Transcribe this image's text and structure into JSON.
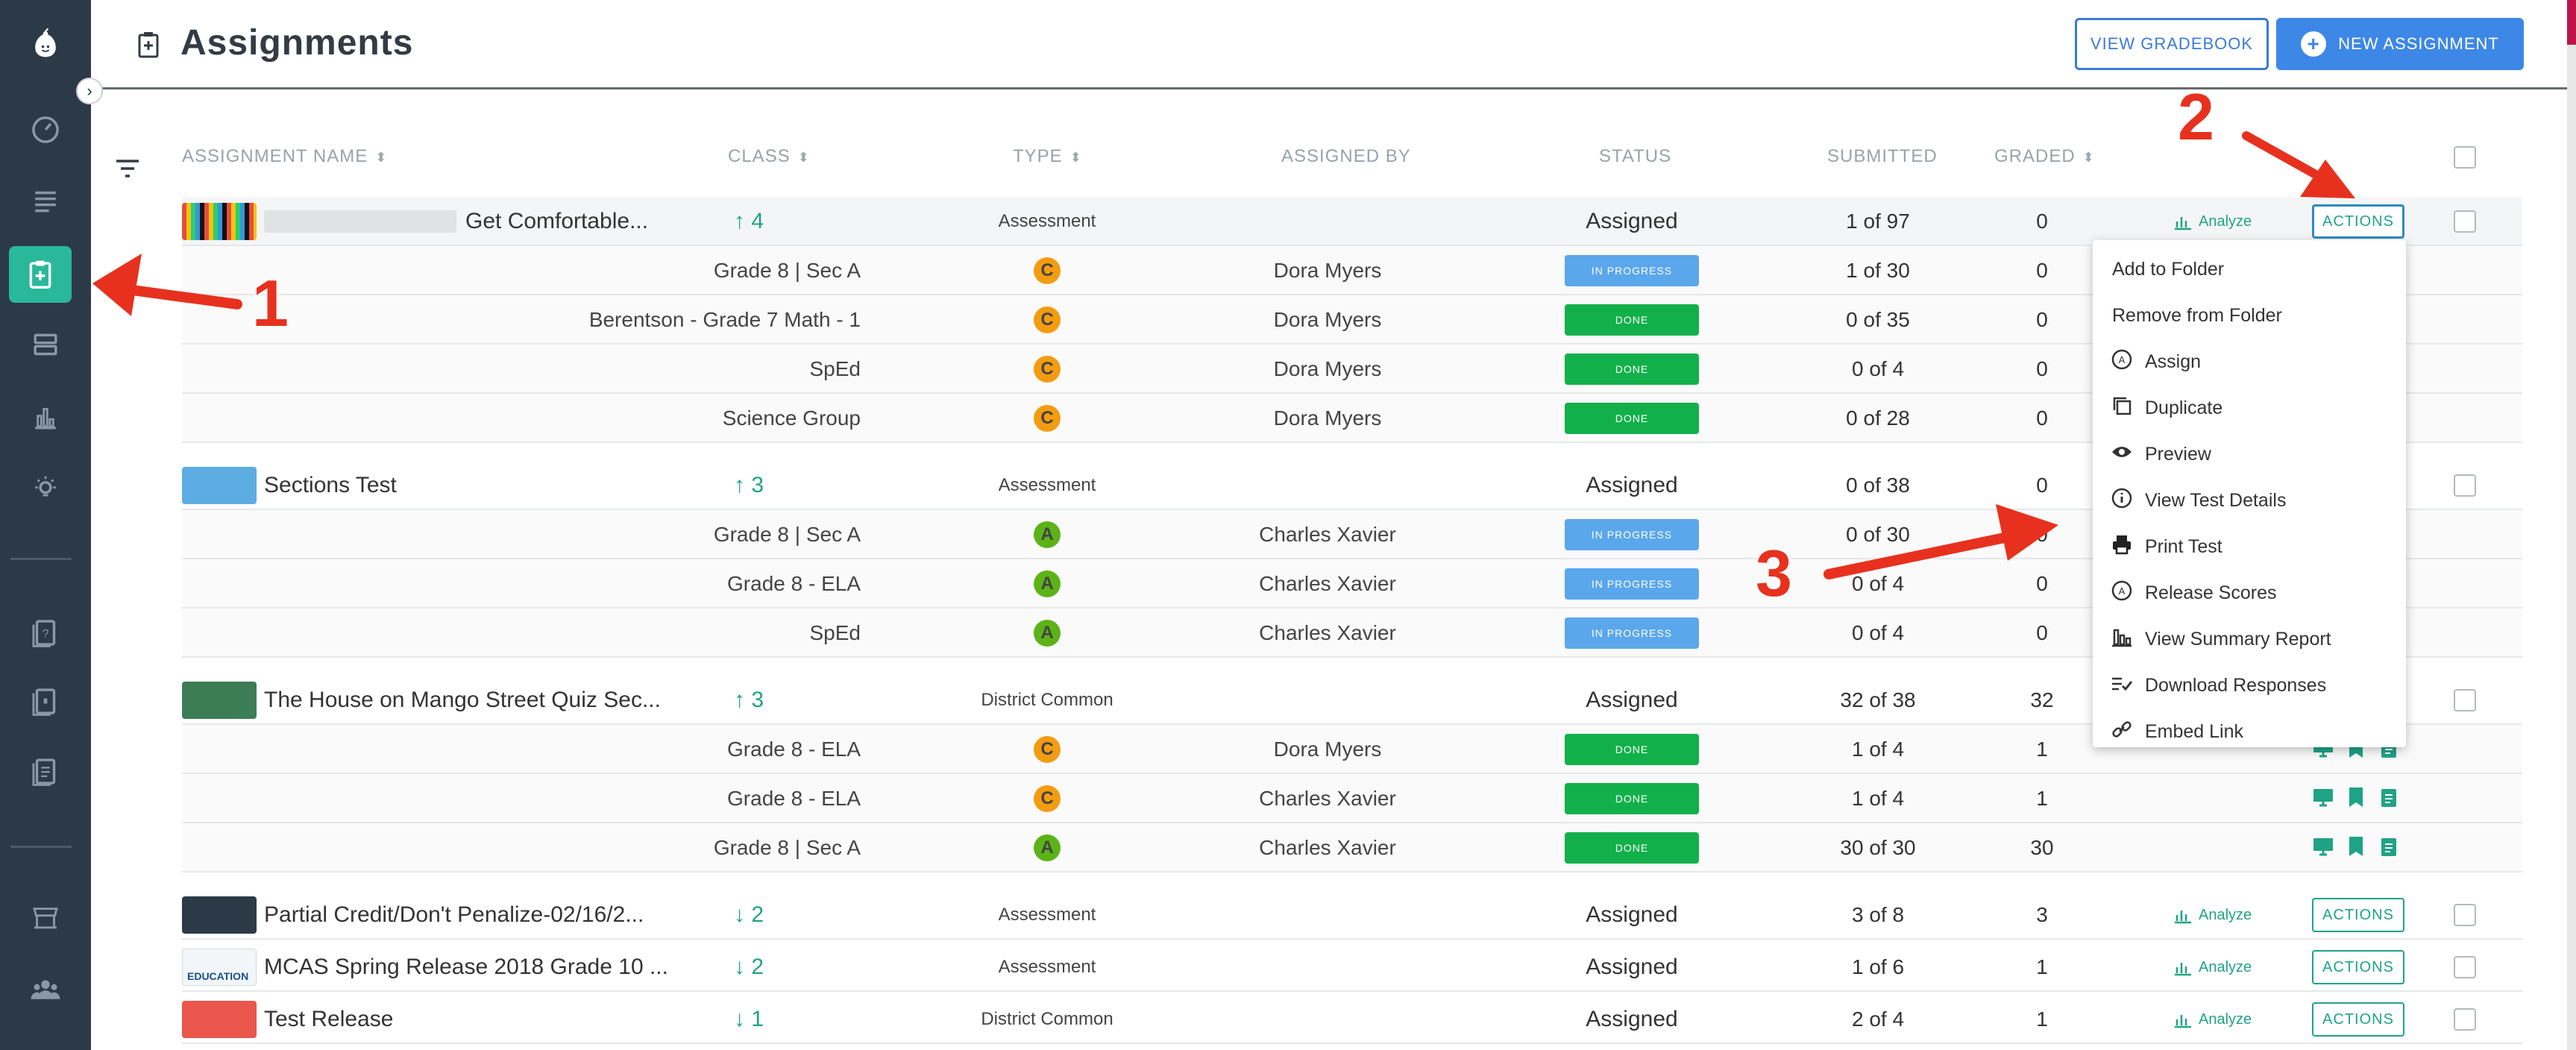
{
  "header": {
    "title": "Assignments",
    "view_gradebook": "VIEW GRADEBOOK",
    "new_assignment": "NEW ASSIGNMENT"
  },
  "columns": {
    "name": "ASSIGNMENT NAME",
    "class": "CLASS",
    "type": "TYPE",
    "assigned_by": "ASSIGNED BY",
    "status": "STATUS",
    "submitted": "SUBMITTED",
    "graded": "GRADED"
  },
  "assignments": [
    {
      "name": "Get Comfortable...",
      "class_count": "↑ 4",
      "type": "Assessment",
      "status": "Assigned",
      "submitted": "1 of 97",
      "graded": "0",
      "analyze": "Analyze",
      "actions": "ACTIONS",
      "sections": [
        {
          "class": "Grade 8 | Sec A",
          "badge": "C",
          "by": "Dora Myers",
          "status": "IN PROGRESS",
          "submitted": "1 of 30",
          "graded": "0"
        },
        {
          "class": "Berentson - Grade 7 Math - 1",
          "badge": "C",
          "by": "Dora Myers",
          "status": "DONE",
          "submitted": "0 of 35",
          "graded": "0"
        },
        {
          "class": "SpEd",
          "badge": "C",
          "by": "Dora Myers",
          "status": "DONE",
          "submitted": "0 of 4",
          "graded": "0"
        },
        {
          "class": "Science Group",
          "badge": "C",
          "by": "Dora Myers",
          "status": "DONE",
          "submitted": "0 of 28",
          "graded": "0"
        }
      ]
    },
    {
      "name": "Sections Test",
      "class_count": "↑ 3",
      "type": "Assessment",
      "status": "Assigned",
      "submitted": "0 of 38",
      "graded": "0",
      "sections": [
        {
          "class": "Grade 8 | Sec A",
          "badge": "A",
          "by": "Charles Xavier",
          "status": "IN PROGRESS",
          "submitted": "0 of 30",
          "graded": "0"
        },
        {
          "class": "Grade 8 - ELA",
          "badge": "A",
          "by": "Charles Xavier",
          "status": "IN PROGRESS",
          "submitted": "0 of 4",
          "graded": "0"
        },
        {
          "class": "SpEd",
          "badge": "A",
          "by": "Charles Xavier",
          "status": "IN PROGRESS",
          "submitted": "0 of 4",
          "graded": "0"
        }
      ]
    },
    {
      "name": "The House on Mango Street Quiz Sec...",
      "class_count": "↑ 3",
      "type": "District Common",
      "status": "Assigned",
      "submitted": "32 of 38",
      "graded": "32",
      "sections": [
        {
          "class": "Grade 8 - ELA",
          "badge": "C",
          "by": "Dora Myers",
          "status": "DONE",
          "submitted": "1 of 4",
          "graded": "1"
        },
        {
          "class": "Grade 8 - ELA",
          "badge": "C",
          "by": "Charles Xavier",
          "status": "DONE",
          "submitted": "1 of 4",
          "graded": "1"
        },
        {
          "class": "Grade 8 | Sec A",
          "badge": "A",
          "by": "Charles Xavier",
          "status": "DONE",
          "submitted": "30 of 30",
          "graded": "30"
        }
      ]
    },
    {
      "name": "Partial Credit/Don't Penalize-02/16/2...",
      "class_count": "↓ 2",
      "type": "Assessment",
      "status": "Assigned",
      "submitted": "3 of 8",
      "graded": "3",
      "analyze": "Analyze",
      "actions": "ACTIONS"
    },
    {
      "name": "MCAS Spring Release 2018 Grade 10 ...",
      "class_count": "↓ 2",
      "type": "Assessment",
      "status": "Assigned",
      "submitted": "1 of 6",
      "graded": "1",
      "analyze": "Analyze",
      "actions": "ACTIONS"
    },
    {
      "name": "Test Release",
      "class_count": "↓ 1",
      "type": "District Common",
      "status": "Assigned",
      "submitted": "2 of 4",
      "graded": "1",
      "analyze": "Analyze",
      "actions": "ACTIONS"
    }
  ],
  "thumb_text": {
    "mcas": "EDUCATION"
  },
  "actions_menu": [
    {
      "label": "Add to Folder",
      "icon": ""
    },
    {
      "label": "Remove from Folder",
      "icon": ""
    },
    {
      "label": "Assign",
      "icon": "assign-circle-icon"
    },
    {
      "label": "Duplicate",
      "icon": "duplicate-icon"
    },
    {
      "label": "Preview",
      "icon": "eye-icon"
    },
    {
      "label": "View Test Details",
      "icon": "info-icon"
    },
    {
      "label": "Print Test",
      "icon": "printer-icon"
    },
    {
      "label": "Release Scores",
      "icon": "release-circle-icon"
    },
    {
      "label": "View Summary Report",
      "icon": "bar-chart-icon"
    },
    {
      "label": "Download Responses",
      "icon": "list-check-icon"
    },
    {
      "label": "Embed Link",
      "icon": "link-icon"
    }
  ],
  "annotations": {
    "one": "1",
    "two": "2",
    "three": "3"
  },
  "colors": {
    "sidebar": "#2c3a47",
    "accent_teal": "#1fa386",
    "primary_blue": "#3d87e6",
    "done_green": "#12b04a",
    "progress_blue": "#5ba7ec",
    "annotation_red": "#e7311e"
  }
}
